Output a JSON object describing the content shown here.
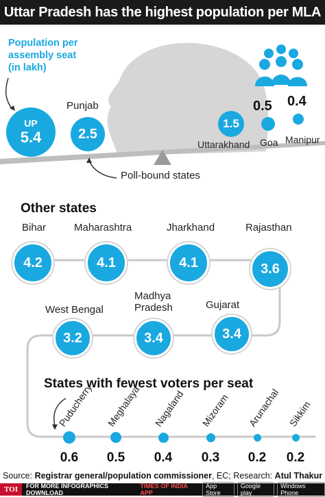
{
  "title": "Uttar Pradesh has the highest population per MLA",
  "legend_note": "Population per assembly seat (in lakh)",
  "poll_bound_label": "Poll-bound states",
  "sections": {
    "other": "Other states",
    "fewest": "States with fewest voters per seat"
  },
  "chart_data": [
    {
      "type": "bubble",
      "title": "Uttar Pradesh has the highest population per MLA",
      "subtitle": "Population per assembly seat (in lakh)",
      "group": "Poll-bound states",
      "categories": [
        "UP",
        "Punjab",
        "Uttarakhand",
        "Goa",
        "Manipur"
      ],
      "values": [
        5.4,
        2.5,
        1.5,
        0.5,
        0.4
      ]
    },
    {
      "type": "bubble",
      "title": "Other states",
      "categories": [
        "Bihar",
        "Maharashtra",
        "Jharkhand",
        "Rajasthan",
        "West Bengal",
        "Madhya Pradesh",
        "Gujarat"
      ],
      "values": [
        4.2,
        4.1,
        4.1,
        3.6,
        3.2,
        3.4,
        3.4
      ]
    },
    {
      "type": "bubble",
      "title": "States with fewest voters per seat",
      "categories": [
        "Puducherry",
        "Meghalaya",
        "Nagaland",
        "Mizoram",
        "Arunachal",
        "Sikkim"
      ],
      "values": [
        0.6,
        0.5,
        0.4,
        0.3,
        0.2,
        0.2
      ]
    }
  ],
  "labels": {
    "up": "UP",
    "punjab": "Punjab",
    "uttarakhand": "Uttarakhand",
    "goa": "Goa",
    "manipur": "Manipur",
    "madhya_line1": "Madhya",
    "madhya_line2": "Pradesh"
  },
  "values_text": {
    "up": "5.4",
    "punjab": "2.5",
    "uttarakhand": "1.5",
    "goa": "0.5",
    "manipur": "0.4",
    "bihar": "4.2",
    "maharashtra": "4.1",
    "jharkhand": "4.1",
    "rajasthan": "3.6",
    "west_bengal": "3.2",
    "madhya": "3.4",
    "gujarat": "3.4",
    "puducherry": "0.6",
    "meghalaya": "0.5",
    "nagaland": "0.4",
    "mizoram": "0.3",
    "arunachal": "0.2",
    "sikkim": "0.2"
  },
  "other_labels": {
    "bihar": "Bihar",
    "maharashtra": "Maharashtra",
    "jharkhand": "Jharkhand",
    "rajasthan": "Rajasthan",
    "west_bengal": "West Bengal",
    "gujarat": "Gujarat"
  },
  "fewest_labels": {
    "puducherry": "Puducherry",
    "meghalaya": "Meghalaya",
    "nagaland": "Nagaland",
    "mizoram": "Mizoram",
    "arunachal": "Arunachal",
    "sikkim": "Sikkim"
  },
  "source": {
    "prefix": "Source: ",
    "main": "Registrar general/population commissioner",
    "mid": ", EC; Research: ",
    "author": "Atul Thakur"
  },
  "footer": {
    "brand": "TOI",
    "text": "FOR MORE  INFOGRAPHICS DOWNLOAD",
    "app": "TIMES OF INDIA APP",
    "store1": "App Store",
    "store2": "Google play",
    "store3": "Windows Phone"
  },
  "colors": {
    "accent": "#1aa8e0",
    "title_bg": "#1a1a1a"
  }
}
